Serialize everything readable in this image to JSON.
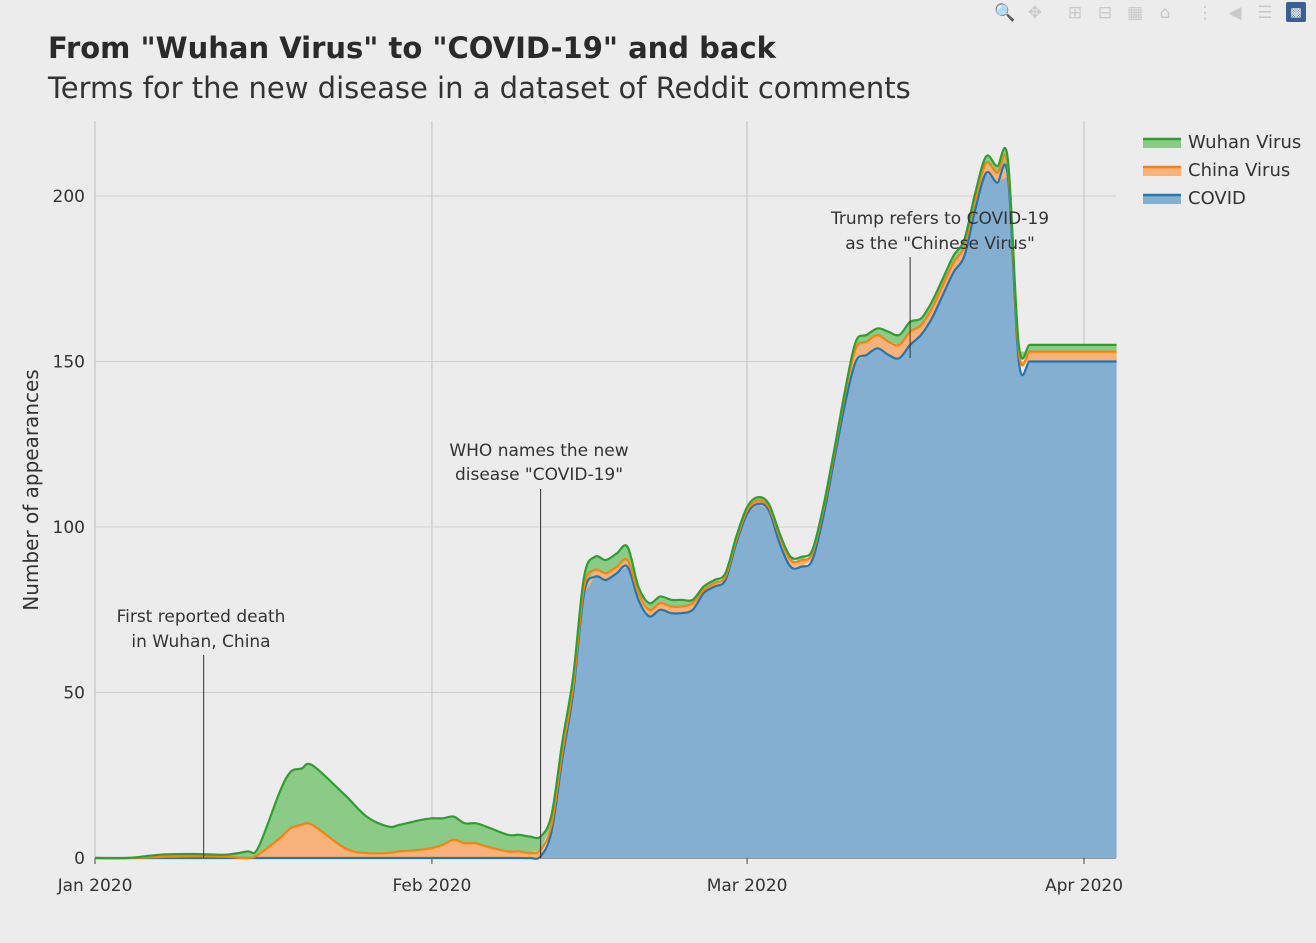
{
  "title": "From \"Wuhan Virus\" to \"COVID-19\" and back",
  "subtitle": "Terms for the new disease in a dataset of Reddit comments",
  "modebar": {
    "buttons": [
      "zoom-icon",
      "pan-icon",
      "zoom-in-icon",
      "zoom-out-icon",
      "autoscale-icon",
      "reset-axes-icon",
      "spike-lines-icon",
      "hover-closest-icon",
      "hover-compare-icon"
    ],
    "logo": "plotly-logo-icon"
  },
  "chart_data": {
    "type": "area",
    "stacked": true,
    "xlabel": "",
    "ylabel": "Number of appearances",
    "ylim": [
      0,
      220
    ],
    "x_ticks": [
      "Jan 2020",
      "Feb 2020",
      "Mar 2020",
      "Apr 2020"
    ],
    "y_ticks": [
      0,
      50,
      100,
      150,
      200
    ],
    "x_start": "2020-01-01",
    "x_end": "2020-04-04",
    "grid": true,
    "legend": {
      "placement": "top-right",
      "entries": [
        "Wuhan Virus",
        "China Virus",
        "COVID"
      ]
    },
    "colors": {
      "Wuhan Virus": {
        "line": "#2ca02c",
        "fill": "#8cca88"
      },
      "China Virus": {
        "line": "#ff7f0e",
        "fill": "#f6b27a"
      },
      "COVID": {
        "line": "#1f77b4",
        "fill": "#85afd0"
      }
    },
    "dates": [
      "2020-01-01",
      "2020-01-04",
      "2020-01-07",
      "2020-01-10",
      "2020-01-13",
      "2020-01-15",
      "2020-01-16",
      "2020-01-18",
      "2020-01-19",
      "2020-01-20",
      "2020-01-21",
      "2020-01-24",
      "2020-01-26",
      "2020-01-28",
      "2020-01-29",
      "2020-01-31",
      "2020-02-01",
      "2020-02-02",
      "2020-02-03",
      "2020-02-04",
      "2020-02-05",
      "2020-02-06",
      "2020-02-08",
      "2020-02-09",
      "2020-02-10",
      "2020-02-11",
      "2020-02-12",
      "2020-02-13",
      "2020-02-14",
      "2020-02-15",
      "2020-02-16",
      "2020-02-17",
      "2020-02-18",
      "2020-02-19",
      "2020-02-20",
      "2020-02-21",
      "2020-02-22",
      "2020-02-23",
      "2020-02-24",
      "2020-02-25",
      "2020-02-26",
      "2020-02-27",
      "2020-02-28",
      "2020-02-29",
      "2020-03-01",
      "2020-03-02",
      "2020-03-03",
      "2020-03-04",
      "2020-03-05",
      "2020-03-06",
      "2020-03-07",
      "2020-03-08",
      "2020-03-09",
      "2020-03-10",
      "2020-03-11",
      "2020-03-12",
      "2020-03-13",
      "2020-03-14",
      "2020-03-15",
      "2020-03-16",
      "2020-03-17",
      "2020-03-18",
      "2020-03-19",
      "2020-03-20",
      "2020-03-21",
      "2020-03-22",
      "2020-03-23",
      "2020-03-24",
      "2020-03-25",
      "2020-03-26",
      "2020-03-27",
      "2020-03-28",
      "2020-03-29",
      "2020-03-30",
      "2020-03-31",
      "2020-04-01",
      "2020-04-02",
      "2020-04-03",
      "2020-04-04"
    ],
    "series": [
      {
        "name": "COVID",
        "values": [
          0,
          0,
          0,
          0,
          0,
          0,
          0,
          0,
          0,
          0,
          0,
          0,
          0,
          0,
          0,
          0,
          0,
          0,
          0,
          0,
          0,
          0,
          0,
          0,
          0,
          0.5,
          8,
          30,
          50,
          80,
          85,
          84,
          86,
          88,
          78,
          73,
          75,
          74,
          74,
          75,
          80,
          82,
          84,
          95,
          104,
          107,
          105,
          95,
          88,
          88,
          90,
          103,
          120,
          137,
          150,
          152,
          154,
          152,
          151,
          155,
          158,
          163,
          170,
          177,
          182,
          196,
          207,
          204,
          206,
          150,
          150,
          150,
          150,
          150,
          150,
          150,
          150,
          150,
          150
        ]
      },
      {
        "name": "China Virus",
        "values": [
          0,
          0,
          0.3,
          0.5,
          0.4,
          0,
          1,
          6,
          9,
          10,
          10,
          3,
          1.5,
          1.5,
          2,
          2.5,
          3,
          4,
          5.5,
          4.5,
          4.5,
          3.5,
          2,
          2,
          1.5,
          2,
          2,
          2,
          2,
          2,
          2,
          2,
          2,
          2,
          2,
          2,
          2,
          2,
          2,
          2,
          1,
          1,
          1,
          1,
          1,
          1,
          1,
          2,
          2,
          2,
          2,
          2,
          2,
          3,
          4,
          4,
          4,
          4,
          4,
          4,
          3,
          3,
          3,
          3,
          3,
          3,
          3,
          3,
          3,
          3,
          3,
          3,
          3,
          3,
          3,
          3,
          3,
          3,
          3
        ]
      },
      {
        "name": "Wuhan Virus",
        "values": [
          0,
          0,
          0.7,
          0.7,
          0.6,
          2,
          2,
          14,
          17,
          17,
          18,
          16,
          11,
          8,
          8,
          9,
          9,
          8,
          7,
          6,
          6,
          6,
          5,
          5,
          5,
          4,
          3,
          3,
          3,
          3,
          4,
          4,
          4,
          4,
          2,
          2,
          2,
          2,
          2,
          1,
          1,
          1,
          1,
          1,
          1,
          1,
          1,
          1,
          1,
          1,
          1,
          1,
          1,
          1,
          2,
          2,
          2,
          3,
          3,
          3,
          2,
          2,
          2,
          2,
          2,
          2,
          2,
          2,
          2,
          2,
          2,
          2,
          2,
          2,
          2,
          2,
          2,
          2,
          2
        ]
      }
    ],
    "annotations": [
      {
        "text_lines": [
          "First reported death",
          "in Wuhan, China"
        ],
        "date": "2020-01-11"
      },
      {
        "text_lines": [
          "WHO names the new",
          "disease \"COVID-19\""
        ],
        "date": "2020-02-11"
      },
      {
        "text_lines": [
          "Trump refers to COVID-19",
          "as the \"Chinese Virus\""
        ],
        "date": "2020-03-16"
      }
    ]
  }
}
